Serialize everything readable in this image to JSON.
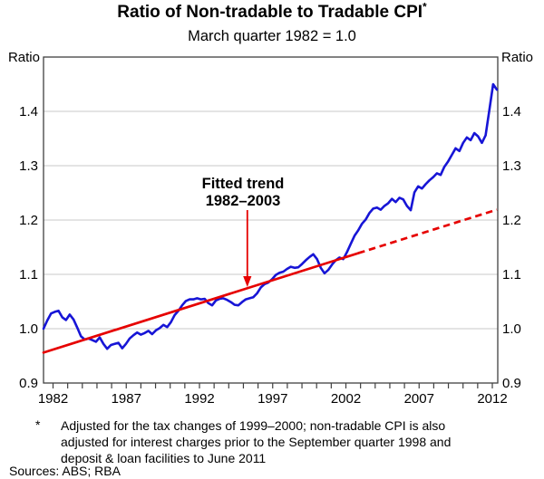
{
  "header": {
    "title": "Ratio of Non-tradable to Tradable CPI",
    "title_footnote_marker": "*",
    "subtitle": "March quarter 1982 = 1.0"
  },
  "axes": {
    "unit_left": "Ratio",
    "unit_right": "Ratio"
  },
  "annotation": {
    "line1": "Fitted trend",
    "line2": "1982–2003"
  },
  "footnote": {
    "marker": "*",
    "lines": [
      "Adjusted for the tax changes of 1999–2000; non-tradable CPI is also",
      "adjusted for interest charges prior to the September quarter 1998 and",
      "deposit & loan facilities to June 2011"
    ],
    "sources": "Sources: ABS; RBA"
  },
  "colors": {
    "series_blue": "#1715d6",
    "trend_red": "#e60100",
    "grid": "#c9c9c9",
    "frame": "#404040",
    "text": "#000000",
    "background": "#ffffff"
  },
  "chart_data": {
    "type": "line",
    "title": "Ratio of Non-tradable to Tradable CPI",
    "subtitle": "March quarter 1982 = 1.0",
    "ylabel": "Ratio",
    "ylim": [
      0.9,
      1.5
    ],
    "yticks": [
      0.9,
      1.0,
      1.1,
      1.2,
      1.3,
      1.4
    ],
    "grid_yticks": [
      1.0,
      1.1,
      1.2,
      1.3,
      1.4
    ],
    "xticks": [
      1982,
      1987,
      1992,
      1997,
      2002,
      2007,
      2012
    ],
    "xticks_minor_every_years": 1,
    "grid": "horizontal-only",
    "legend_position": "none",
    "series": [
      {
        "name": "Ratio of non-tradable to tradable CPI (quarterly)",
        "color": "#1715d6",
        "x_start": 1982.0,
        "x_step_years": 0.25,
        "values": [
          1.0,
          1.015,
          1.028,
          1.031,
          1.033,
          1.021,
          1.016,
          1.026,
          1.017,
          1.002,
          0.986,
          0.98,
          0.982,
          0.979,
          0.976,
          0.984,
          0.972,
          0.963,
          0.97,
          0.972,
          0.974,
          0.964,
          0.972,
          0.982,
          0.988,
          0.993,
          0.989,
          0.992,
          0.996,
          0.99,
          0.997,
          1.001,
          1.007,
          1.003,
          1.012,
          1.025,
          1.033,
          1.043,
          1.051,
          1.054,
          1.054,
          1.056,
          1.054,
          1.055,
          1.047,
          1.043,
          1.052,
          1.055,
          1.056,
          1.053,
          1.049,
          1.044,
          1.043,
          1.049,
          1.054,
          1.056,
          1.058,
          1.065,
          1.076,
          1.082,
          1.085,
          1.091,
          1.099,
          1.103,
          1.105,
          1.11,
          1.114,
          1.112,
          1.113,
          1.119,
          1.126,
          1.132,
          1.137,
          1.128,
          1.112,
          1.102,
          1.108,
          1.118,
          1.126,
          1.131,
          1.128,
          1.141,
          1.156,
          1.171,
          1.181,
          1.193,
          1.201,
          1.213,
          1.221,
          1.223,
          1.219,
          1.226,
          1.231,
          1.239,
          1.233,
          1.241,
          1.238,
          1.226,
          1.218,
          1.251,
          1.262,
          1.258,
          1.266,
          1.273,
          1.279,
          1.286,
          1.283,
          1.298,
          1.308,
          1.32,
          1.332,
          1.327,
          1.342,
          1.352,
          1.347,
          1.36,
          1.354,
          1.342,
          1.356,
          1.402,
          1.45,
          1.44
        ]
      },
      {
        "name": "Fitted trend 1982–2003 (extrapolated after 2003)",
        "color": "#e60100",
        "x": [
          1982.0,
          2003.0,
          2012.25
        ],
        "y": [
          0.956,
          1.139,
          1.219
        ],
        "solid_until_x": 2003.0,
        "style_after": "dashed"
      }
    ],
    "annotation": {
      "text": [
        "Fitted trend",
        "1982–2003"
      ],
      "arrow_points_to_x": 1995.6,
      "arrow_color": "#e60100"
    }
  }
}
